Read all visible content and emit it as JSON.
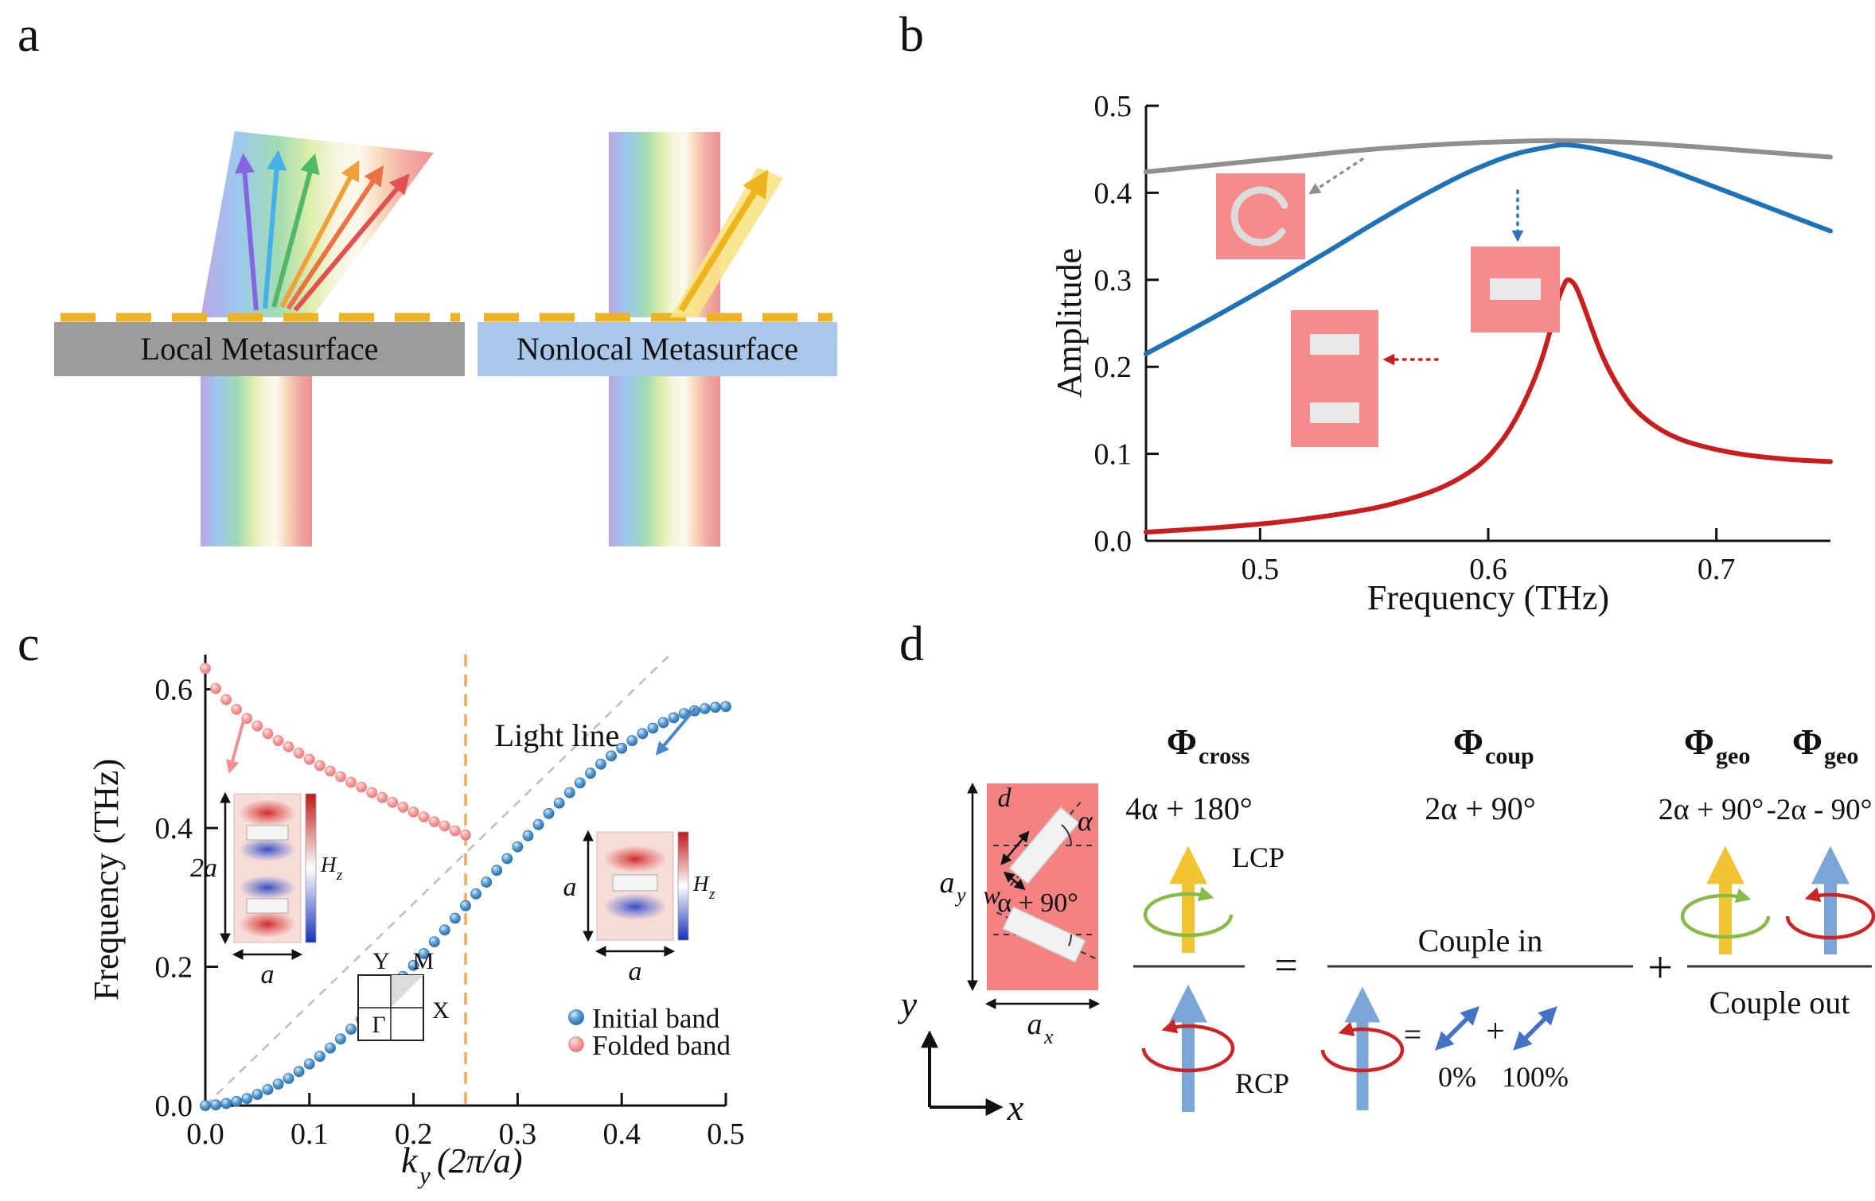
{
  "panel_labels": {
    "a": "a",
    "b": "b",
    "c": "c",
    "d": "d"
  },
  "panel_a": {
    "local_label": "Local Metasurface",
    "nonlocal_label": "Nonlocal Metasurface"
  },
  "panel_c": {
    "insets": {
      "dim_2a": "2a",
      "dim_a": "a",
      "field_h": "H",
      "field_sub": "z",
      "bz": {
        "gamma": "Γ",
        "x": "X",
        "y": "Y",
        "m": "M"
      }
    }
  },
  "panel_d": {
    "unit_cell": {
      "d": "d",
      "w": "w",
      "alpha": "α",
      "alpha_plus": "α + 90°",
      "a": "a",
      "sub_x": "x",
      "sub_y": "y",
      "axis_x": "x",
      "axis_y": "y"
    },
    "terms": [
      {
        "sym": "Φ",
        "sub": "cross",
        "formula": "4α + 180°"
      },
      {
        "sym": "Φ",
        "sub": "coup",
        "formula": "2α + 90°"
      },
      {
        "sym": "Φ",
        "sub": "geo",
        "formula": "2α + 90°"
      },
      {
        "sym": "Φ",
        "sub": "geo",
        "formula": "-2α - 90°"
      }
    ],
    "lcp": "LCP",
    "rcp": "RCP",
    "equals": "=",
    "plus": "+",
    "equals_small": "=",
    "plus_small": "+",
    "couple_in": "Couple in",
    "couple_out": "Couple out",
    "pct_zero": "0%",
    "pct_hundred": "100%"
  },
  "chart_data": [
    {
      "id": "b",
      "type": "line",
      "xlabel": "Frequency (THz)",
      "ylabel": "Amplitude",
      "xlim": [
        0.45,
        0.75
      ],
      "ylim": [
        0,
        0.5
      ],
      "xticks": [
        0.5,
        0.6,
        0.7
      ],
      "xtick_labels": [
        "0.5",
        "0.6",
        "0.7"
      ],
      "yticks": [
        0,
        0.1,
        0.2,
        0.3,
        0.4,
        0.5
      ],
      "ytick_labels": [
        "0.0",
        "0.1",
        "0.2",
        "0.3",
        "0.4",
        "0.5"
      ],
      "grid": false,
      "series": [
        {
          "name": "split-ring",
          "color": "#8f8f8f",
          "x": [
            0.45,
            0.48,
            0.51,
            0.54,
            0.57,
            0.6,
            0.63,
            0.66,
            0.69,
            0.72,
            0.75
          ],
          "y": [
            0.424,
            0.432,
            0.44,
            0.448,
            0.454,
            0.458,
            0.46,
            0.458,
            0.453,
            0.447,
            0.441
          ]
        },
        {
          "name": "single-bar",
          "color": "#1f72b8",
          "x": [
            0.45,
            0.47,
            0.49,
            0.51,
            0.53,
            0.55,
            0.57,
            0.59,
            0.61,
            0.625,
            0.635,
            0.65,
            0.67,
            0.69,
            0.71,
            0.73,
            0.75
          ],
          "y": [
            0.215,
            0.243,
            0.272,
            0.302,
            0.333,
            0.365,
            0.395,
            0.422,
            0.443,
            0.452,
            0.455,
            0.449,
            0.435,
            0.416,
            0.396,
            0.376,
            0.356
          ]
        },
        {
          "name": "double-bar",
          "color": "#c81e1e",
          "x": [
            0.45,
            0.48,
            0.51,
            0.54,
            0.56,
            0.58,
            0.595,
            0.605,
            0.612,
            0.618,
            0.623,
            0.627,
            0.63,
            0.633,
            0.635,
            0.638,
            0.641,
            0.645,
            0.65,
            0.656,
            0.663,
            0.672,
            0.683,
            0.695,
            0.71,
            0.73,
            0.75
          ],
          "y": [
            0.01,
            0.015,
            0.022,
            0.033,
            0.044,
            0.062,
            0.085,
            0.112,
            0.14,
            0.172,
            0.205,
            0.24,
            0.272,
            0.293,
            0.3,
            0.294,
            0.276,
            0.247,
            0.213,
            0.182,
            0.155,
            0.134,
            0.118,
            0.108,
            0.1,
            0.094,
            0.091
          ]
        }
      ]
    },
    {
      "id": "c",
      "type": "scatter",
      "xlabel": "ky (2π/a)",
      "xlabel_parts": {
        "main": "k",
        "sub": "y",
        "rest": "(2π/a)"
      },
      "ylabel": "Frequency (THz)",
      "xlim": [
        0,
        0.5
      ],
      "ylim": [
        0,
        0.65
      ],
      "xticks": [
        0,
        0.1,
        0.2,
        0.3,
        0.4,
        0.5
      ],
      "xtick_labels": [
        "0.0",
        "0.1",
        "0.2",
        "0.3",
        "0.4",
        "0.5"
      ],
      "yticks": [
        0,
        0.2,
        0.4,
        0.6
      ],
      "ytick_labels": [
        "0.0",
        "0.2",
        "0.4",
        "0.6"
      ],
      "light_line": {
        "label": "Light line",
        "x": [
          0,
          0.4465
        ],
        "y": [
          0,
          0.65
        ]
      },
      "fold_line_x": 0.25,
      "legend_position": "lower right",
      "series": [
        {
          "name": "Initial band",
          "color": "#3f86c2",
          "x": [
            0,
            0.01,
            0.02,
            0.03,
            0.04,
            0.05,
            0.06,
            0.07,
            0.08,
            0.09,
            0.1,
            0.11,
            0.12,
            0.13,
            0.14,
            0.15,
            0.16,
            0.17,
            0.18,
            0.19,
            0.2,
            0.21,
            0.22,
            0.23,
            0.24,
            0.25,
            0.26,
            0.27,
            0.28,
            0.29,
            0.3,
            0.31,
            0.32,
            0.33,
            0.34,
            0.35,
            0.36,
            0.37,
            0.38,
            0.39,
            0.4,
            0.41,
            0.42,
            0.43,
            0.44,
            0.45,
            0.46,
            0.47,
            0.48,
            0.49,
            0.5
          ],
          "y": [
            0,
            0.001,
            0.003,
            0.006,
            0.01,
            0.016,
            0.023,
            0.031,
            0.039,
            0.049,
            0.06,
            0.071,
            0.083,
            0.096,
            0.11,
            0.124,
            0.139,
            0.154,
            0.17,
            0.186,
            0.202,
            0.219,
            0.236,
            0.253,
            0.27,
            0.288,
            0.305,
            0.322,
            0.339,
            0.356,
            0.373,
            0.389,
            0.405,
            0.421,
            0.436,
            0.451,
            0.465,
            0.479,
            0.492,
            0.504,
            0.515,
            0.526,
            0.536,
            0.544,
            0.552,
            0.559,
            0.565,
            0.569,
            0.572,
            0.574,
            0.575
          ]
        },
        {
          "name": "Folded band",
          "color": "#f29a9a",
          "x": [
            0,
            0.01,
            0.02,
            0.03,
            0.04,
            0.05,
            0.06,
            0.07,
            0.08,
            0.09,
            0.1,
            0.11,
            0.12,
            0.13,
            0.14,
            0.15,
            0.16,
            0.17,
            0.18,
            0.19,
            0.2,
            0.21,
            0.22,
            0.23,
            0.24,
            0.25
          ],
          "y": [
            0.63,
            0.601,
            0.585,
            0.571,
            0.558,
            0.547,
            0.536,
            0.526,
            0.517,
            0.508,
            0.499,
            0.49,
            0.482,
            0.474,
            0.466,
            0.459,
            0.451,
            0.444,
            0.437,
            0.43,
            0.423,
            0.416,
            0.409,
            0.403,
            0.396,
            0.39
          ]
        }
      ]
    }
  ]
}
